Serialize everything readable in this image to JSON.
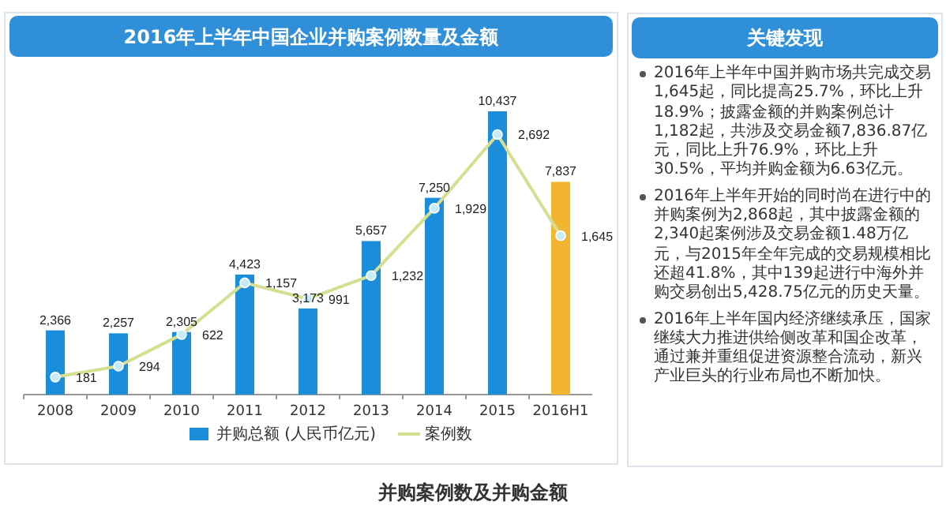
{
  "chart_data": [
    {
      "type": "bar",
      "title": "2016年上半年中国企业并购案例数量及金额",
      "categories": [
        "2008",
        "2009",
        "2010",
        "2011",
        "2012",
        "2013",
        "2014",
        "2015",
        "2016H1"
      ],
      "series": [
        {
          "name": "并购总额 (人民币亿元)",
          "type": "bar",
          "colors": [
            "#1a8ddb",
            "#1a8ddb",
            "#1a8ddb",
            "#1a8ddb",
            "#1a8ddb",
            "#1a8ddb",
            "#1a8ddb",
            "#1a8ddb",
            "#f2b530"
          ],
          "values": [
            2366,
            2257,
            2305,
            4423,
            3173,
            5657,
            7250,
            10437,
            7837
          ],
          "value_labels": [
            "2,366",
            "2,257",
            "2,305",
            "4,423",
            "3,173",
            "5,657",
            "7,250",
            "10,437",
            "7,837"
          ]
        },
        {
          "name": "案例数",
          "type": "line",
          "axis": "y2",
          "color": "#d6df8f",
          "marker": "circle",
          "values": [
            181,
            294,
            622,
            1157,
            991,
            1232,
            1929,
            2692,
            1645
          ],
          "value_labels": [
            "181",
            "294",
            "622",
            "1,157",
            "991",
            "1,232",
            "1,929",
            "2,692",
            "1,645"
          ]
        }
      ],
      "tick_labels": "x",
      "legend": "bottom",
      "annotations": [
        "并购案例数及并购金额"
      ]
    },
    {
      "type": "other",
      "title": "关键发现",
      "annotations": [
        "2016年上半年中国并购市场共完成交易1,645起，同比提高25.7%，环比上升18.9%；披露金额的并购案例总计1,182起，共涉及交易金额7,836.87亿元，同比上升76.9%，环比上升30.5%，平均并购金额为6.63亿元。",
        "2016年上半年开始的同时尚在进行中的并购案例为2,868起，其中披露金额的2,340起案例涉及交易金额1.48万亿元，与2015年全年完成的交易规模相比还超41.8%，其中139起进行中海外并购交易创出5,428.75亿元的历史天量。",
        "2016年上半年国内经济继续承压，国家继续大力推进供给侧改革和国企改革，通过兼并重组促进资源整合流动，新兴产业巨头的行业布局也不断加快。"
      ]
    }
  ]
}
